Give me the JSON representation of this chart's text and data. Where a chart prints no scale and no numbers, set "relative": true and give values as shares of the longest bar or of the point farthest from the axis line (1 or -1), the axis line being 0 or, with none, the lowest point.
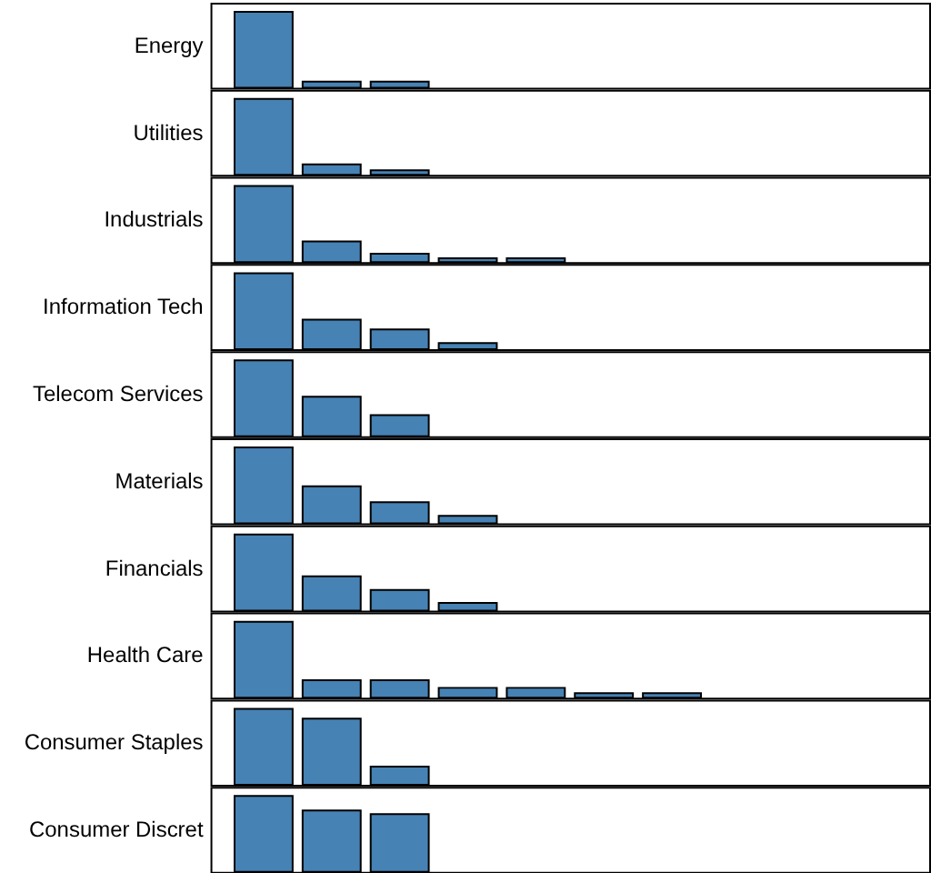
{
  "chart_data": [
    {
      "type": "bar",
      "title": "Energy",
      "categories": [
        null,
        null,
        null
      ],
      "values": [
        1,
        0.08,
        0.08
      ],
      "color": "#4682b4",
      "relative": true
    },
    {
      "type": "bar",
      "title": "Utilities",
      "categories": [
        null,
        null,
        null
      ],
      "values": [
        1,
        0.14,
        0.06
      ],
      "color": "#4682b4",
      "relative": true
    },
    {
      "type": "bar",
      "title": "Industrials",
      "categories": [
        null,
        null,
        null,
        null,
        null
      ],
      "values": [
        1,
        0.27,
        0.11,
        0.05,
        0.05
      ],
      "color": "#4682b4",
      "relative": true
    },
    {
      "type": "bar",
      "title": "Information Tech",
      "categories": [
        null,
        null,
        null,
        null
      ],
      "values": [
        1,
        0.39,
        0.26,
        0.08
      ],
      "color": "#4682b4",
      "relative": true
    },
    {
      "type": "bar",
      "title": "Telecom Services",
      "categories": [
        null,
        null,
        null
      ],
      "values": [
        1,
        0.52,
        0.28
      ],
      "color": "#4682b4",
      "relative": true
    },
    {
      "type": "bar",
      "title": "Materials",
      "categories": [
        null,
        null,
        null,
        null
      ],
      "values": [
        1,
        0.49,
        0.28,
        0.1
      ],
      "color": "#4682b4",
      "relative": true
    },
    {
      "type": "bar",
      "title": "Financials",
      "categories": [
        null,
        null,
        null,
        null
      ],
      "values": [
        1,
        0.45,
        0.27,
        0.1
      ],
      "color": "#4682b4",
      "relative": true
    },
    {
      "type": "bar",
      "title": "Health Care",
      "categories": [
        null,
        null,
        null,
        null,
        null,
        null,
        null
      ],
      "values": [
        1,
        0.23,
        0.23,
        0.13,
        0.13,
        0.06,
        0.06
      ],
      "color": "#4682b4",
      "relative": true
    },
    {
      "type": "bar",
      "title": "Consumer Staples",
      "categories": [
        null,
        null,
        null
      ],
      "values": [
        1,
        0.87,
        0.24
      ],
      "color": "#4682b4",
      "relative": true
    },
    {
      "type": "bar",
      "title": "Consumer Discret",
      "categories": [
        null,
        null,
        null
      ],
      "values": [
        1,
        0.81,
        0.76
      ],
      "color": "#4682b4",
      "relative": true
    }
  ]
}
